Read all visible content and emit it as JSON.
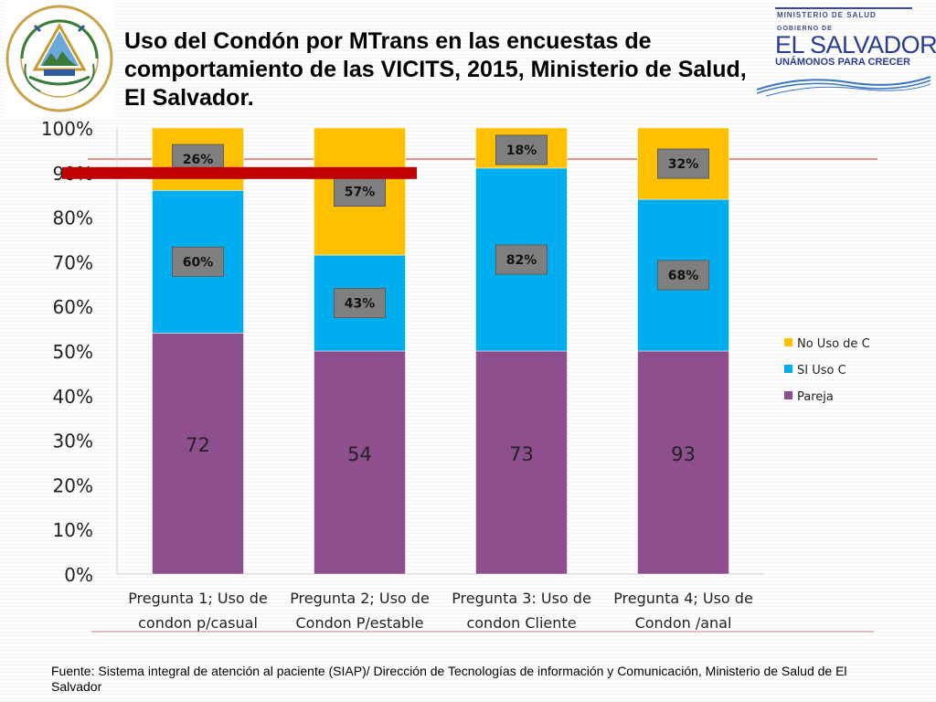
{
  "header": {
    "title": "Uso del Condón por  MTrans en las encuestas de comportamiento de las VICITS, 2015, Ministerio de Salud, El Salvador.",
    "seal_text": "REPUBLICA DE EL SALVADOR EN LA AMERICA CENTRAL",
    "brand": {
      "ministry": "MINISTERIO DE SALUD",
      "gobierno": "GOBIERNO DE",
      "country": "EL SALVADOR",
      "slogan": "UNÁMONOS PARA CRECER"
    }
  },
  "colors": {
    "pareja": "#8e4f8e",
    "si_uso": "#00aeef",
    "no_uso": "#ffc000",
    "reference_line": "#c00000",
    "label_box": "#7f7f7f",
    "accent_line": "#d62020"
  },
  "chart_data": {
    "type": "bar",
    "stacked": true,
    "title": "Uso del Condón por  MTrans en las encuestas de comportamiento de las VICITS, 2015, Ministerio de Salud, El Salvador.",
    "categories": [
      "Pregunta 1; Uso de condon p/casual",
      "Pregunta 2; Uso de Condon P/estable",
      "Pregunta 3: Uso de condon Cliente",
      "Pregunta 4; Uso de Condon /anal"
    ],
    "category_lines": [
      [
        "Pregunta 1; Uso de",
        "condon p/casual"
      ],
      [
        "Pregunta 2; Uso de",
        "Condon P/estable"
      ],
      [
        "Pregunta 3: Uso de",
        "condon Cliente"
      ],
      [
        "Pregunta 4; Uso de",
        "Condon /anal"
      ]
    ],
    "series": [
      {
        "name": "Pareja",
        "values": [
          54,
          50,
          50,
          50
        ],
        "labels": [
          "72",
          "54",
          "73",
          "93"
        ]
      },
      {
        "name": "SI Uso C",
        "values": [
          32,
          21.5,
          41,
          34
        ],
        "labels": [
          "60%",
          "43%",
          "82%",
          "68%"
        ]
      },
      {
        "name": "No Uso de C",
        "values": [
          14,
          28.5,
          9,
          16
        ],
        "labels": [
          "26%",
          "57%",
          "18%",
          "32%"
        ]
      }
    ],
    "legend": [
      "No Uso de C",
      "SI Uso C",
      "Pareja"
    ],
    "legend_position": "right",
    "yticks": [
      "0%",
      "10%",
      "20%",
      "30%",
      "40%",
      "50%",
      "60%",
      "70%",
      "80%",
      "90%",
      "100%"
    ],
    "ylim": [
      0,
      100
    ],
    "reference_line": 90,
    "xlabel": "",
    "ylabel": ""
  },
  "footer": {
    "source": "Fuente: Sistema integral de atención al paciente (SIAP)/ Dirección de Tecnologías de información y Comunicación, Ministerio de Salud de El Salvador"
  }
}
